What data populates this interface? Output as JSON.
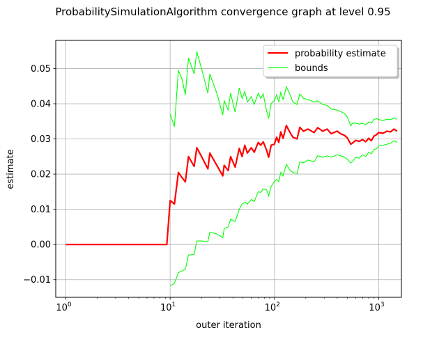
{
  "chart_data": {
    "type": "line",
    "title": "ProbabilitySimulationAlgorithm convergence graph at level 0.95",
    "xlabel": "outer iteration",
    "ylabel": "estimate",
    "xscale": "log",
    "xlim": [
      0.8,
      1650
    ],
    "ylim": [
      -0.015,
      0.058
    ],
    "grid": true,
    "legend_position": "top-right",
    "x_ticks": [
      {
        "value": 1,
        "base": "10",
        "exp": "0"
      },
      {
        "value": 10,
        "base": "10",
        "exp": "1"
      },
      {
        "value": 100,
        "base": "10",
        "exp": "2"
      },
      {
        "value": 1000,
        "base": "10",
        "exp": "3"
      }
    ],
    "y_ticks": [
      {
        "value": -0.01,
        "label": "−0.01"
      },
      {
        "value": 0.0,
        "label": "0.00"
      },
      {
        "value": 0.01,
        "label": "0.01"
      },
      {
        "value": 0.02,
        "label": "0.02"
      },
      {
        "value": 0.03,
        "label": "0.03"
      },
      {
        "value": 0.04,
        "label": "0.04"
      },
      {
        "value": 0.05,
        "label": "0.05"
      }
    ],
    "series": [
      {
        "name": "probability estimate",
        "color": "#ff0000",
        "points": [
          [
            1,
            0.0
          ],
          [
            9.3,
            0.0
          ],
          [
            10,
            0.0125
          ],
          [
            11,
            0.0115
          ],
          [
            12,
            0.0205
          ],
          [
            13,
            0.019
          ],
          [
            14,
            0.0178
          ],
          [
            15,
            0.025
          ],
          [
            17,
            0.0222
          ],
          [
            18,
            0.0275
          ],
          [
            20,
            0.025
          ],
          [
            23,
            0.0215
          ],
          [
            24,
            0.026
          ],
          [
            28,
            0.0225
          ],
          [
            32,
            0.0195
          ],
          [
            33,
            0.0225
          ],
          [
            36,
            0.021
          ],
          [
            38,
            0.025
          ],
          [
            42,
            0.022
          ],
          [
            46,
            0.0273
          ],
          [
            49,
            0.025
          ],
          [
            52,
            0.0282
          ],
          [
            55,
            0.026
          ],
          [
            60,
            0.0275
          ],
          [
            64,
            0.0262
          ],
          [
            70,
            0.029
          ],
          [
            74,
            0.0282
          ],
          [
            78,
            0.0292
          ],
          [
            84,
            0.0268
          ],
          [
            88,
            0.0248
          ],
          [
            93,
            0.0282
          ],
          [
            100,
            0.0285
          ],
          [
            105,
            0.0305
          ],
          [
            110,
            0.029
          ],
          [
            115,
            0.032
          ],
          [
            121,
            0.0302
          ],
          [
            130,
            0.0338
          ],
          [
            140,
            0.032
          ],
          [
            150,
            0.0305
          ],
          [
            165,
            0.03
          ],
          [
            175,
            0.0333
          ],
          [
            190,
            0.0322
          ],
          [
            210,
            0.0328
          ],
          [
            240,
            0.0318
          ],
          [
            260,
            0.0332
          ],
          [
            290,
            0.0322
          ],
          [
            320,
            0.0328
          ],
          [
            350,
            0.0315
          ],
          [
            400,
            0.0322
          ],
          [
            430,
            0.0315
          ],
          [
            470,
            0.031
          ],
          [
            500,
            0.0303
          ],
          [
            540,
            0.0285
          ],
          [
            560,
            0.0288
          ],
          [
            600,
            0.0296
          ],
          [
            650,
            0.0293
          ],
          [
            700,
            0.0298
          ],
          [
            750,
            0.0292
          ],
          [
            800,
            0.0302
          ],
          [
            850,
            0.0295
          ],
          [
            900,
            0.0308
          ],
          [
            950,
            0.0312
          ],
          [
            1000,
            0.0318
          ],
          [
            1100,
            0.0316
          ],
          [
            1200,
            0.0322
          ],
          [
            1300,
            0.032
          ],
          [
            1400,
            0.0328
          ],
          [
            1500,
            0.0322
          ]
        ]
      },
      {
        "name": "bounds",
        "color": "#00ff00",
        "points": [
          [
            10,
            0.037
          ],
          [
            11,
            0.0335
          ],
          [
            12,
            0.0495
          ],
          [
            13,
            0.047
          ],
          [
            14,
            0.0425
          ],
          [
            15,
            0.053
          ],
          [
            17,
            0.0485
          ],
          [
            18,
            0.0548
          ],
          [
            20,
            0.05
          ],
          [
            23,
            0.043
          ],
          [
            24,
            0.0485
          ],
          [
            28,
            0.043
          ],
          [
            32,
            0.0368
          ],
          [
            33,
            0.0408
          ],
          [
            36,
            0.0382
          ],
          [
            38,
            0.043
          ],
          [
            42,
            0.0376
          ],
          [
            46,
            0.0445
          ],
          [
            49,
            0.0415
          ],
          [
            52,
            0.0435
          ],
          [
            55,
            0.0405
          ],
          [
            60,
            0.042
          ],
          [
            64,
            0.0398
          ],
          [
            70,
            0.043
          ],
          [
            74,
            0.0415
          ],
          [
            78,
            0.0428
          ],
          [
            84,
            0.038
          ],
          [
            88,
            0.0358
          ],
          [
            93,
            0.04
          ],
          [
            100,
            0.041
          ],
          [
            105,
            0.0425
          ],
          [
            110,
            0.0405
          ],
          [
            115,
            0.0432
          ],
          [
            121,
            0.0412
          ],
          [
            130,
            0.0448
          ],
          [
            140,
            0.0428
          ],
          [
            150,
            0.0405
          ],
          [
            165,
            0.0398
          ],
          [
            175,
            0.0428
          ],
          [
            190,
            0.0415
          ],
          [
            210,
            0.0412
          ],
          [
            240,
            0.0405
          ],
          [
            260,
            0.0408
          ],
          [
            290,
            0.0398
          ],
          [
            320,
            0.0395
          ],
          [
            350,
            0.0385
          ],
          [
            400,
            0.0382
          ],
          [
            430,
            0.0378
          ],
          [
            470,
            0.0372
          ],
          [
            500,
            0.0362
          ],
          [
            540,
            0.0337
          ],
          [
            560,
            0.0345
          ],
          [
            600,
            0.0345
          ],
          [
            650,
            0.0342
          ],
          [
            700,
            0.0345
          ],
          [
            750,
            0.034
          ],
          [
            800,
            0.0348
          ],
          [
            850,
            0.0345
          ],
          [
            900,
            0.0355
          ],
          [
            950,
            0.0358
          ],
          [
            1000,
            0.0355
          ],
          [
            1100,
            0.0352
          ],
          [
            1200,
            0.0356
          ],
          [
            1300,
            0.0355
          ],
          [
            1400,
            0.036
          ],
          [
            1500,
            0.0355
          ]
        ],
        "lower_points": [
          [
            10,
            -0.0118
          ],
          [
            11,
            -0.011
          ],
          [
            12,
            -0.008
          ],
          [
            13,
            -0.0075
          ],
          [
            14,
            -0.007
          ],
          [
            15,
            -0.003
          ],
          [
            17,
            -0.0028
          ],
          [
            18,
            0.001
          ],
          [
            20,
            0.001
          ],
          [
            23,
            0.0008
          ],
          [
            24,
            0.0035
          ],
          [
            28,
            0.003
          ],
          [
            32,
            0.002
          ],
          [
            33,
            0.0045
          ],
          [
            36,
            0.005
          ],
          [
            38,
            0.0072
          ],
          [
            42,
            0.0065
          ],
          [
            46,
            0.01
          ],
          [
            49,
            0.0115
          ],
          [
            52,
            0.012
          ],
          [
            55,
            0.0115
          ],
          [
            60,
            0.0128
          ],
          [
            64,
            0.0122
          ],
          [
            70,
            0.015
          ],
          [
            74,
            0.0148
          ],
          [
            78,
            0.0158
          ],
          [
            84,
            0.0155
          ],
          [
            88,
            0.0138
          ],
          [
            93,
            0.0165
          ],
          [
            100,
            0.018
          ],
          [
            105,
            0.0185
          ],
          [
            110,
            0.0178
          ],
          [
            115,
            0.0205
          ],
          [
            121,
            0.0195
          ],
          [
            130,
            0.0228
          ],
          [
            140,
            0.0212
          ],
          [
            150,
            0.0205
          ],
          [
            165,
            0.0202
          ],
          [
            175,
            0.0235
          ],
          [
            190,
            0.0232
          ],
          [
            210,
            0.024
          ],
          [
            240,
            0.0235
          ],
          [
            260,
            0.0252
          ],
          [
            290,
            0.0248
          ],
          [
            320,
            0.0252
          ],
          [
            350,
            0.0248
          ],
          [
            400,
            0.0255
          ],
          [
            430,
            0.0252
          ],
          [
            470,
            0.0248
          ],
          [
            500,
            0.0242
          ],
          [
            540,
            0.0232
          ],
          [
            560,
            0.0235
          ],
          [
            600,
            0.0248
          ],
          [
            650,
            0.0245
          ],
          [
            700,
            0.0255
          ],
          [
            750,
            0.025
          ],
          [
            800,
            0.0262
          ],
          [
            850,
            0.0258
          ],
          [
            900,
            0.027
          ],
          [
            950,
            0.0272
          ],
          [
            1000,
            0.028
          ],
          [
            1100,
            0.0282
          ],
          [
            1200,
            0.0285
          ],
          [
            1300,
            0.0288
          ],
          [
            1400,
            0.0295
          ],
          [
            1500,
            0.029
          ]
        ]
      }
    ]
  }
}
